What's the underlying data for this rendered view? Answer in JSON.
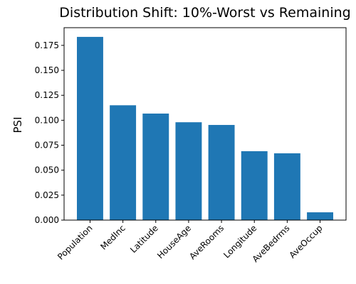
{
  "chart_data": {
    "type": "bar",
    "title": "Distribution Shift: 10%-Worst vs Remaining",
    "y_label": "PSI",
    "categories": [
      "Population",
      "MedInc",
      "Latitude",
      "HouseAge",
      "AveRooms",
      "Longitude",
      "AveBedrms",
      "AveOccup"
    ],
    "values": [
      0.1835,
      0.115,
      0.1067,
      0.098,
      0.0953,
      0.069,
      0.0669,
      0.0078
    ],
    "color": "#1f77b4",
    "ylim": [
      0,
      0.1927
    ],
    "yticks": [
      {
        "value": 0,
        "label": "0.000"
      },
      {
        "value": 0.025,
        "label": "0.025"
      },
      {
        "value": 0.05,
        "label": "0.050"
      },
      {
        "value": 0.075,
        "label": "0.075"
      },
      {
        "value": 0.1,
        "label": "0.100"
      },
      {
        "value": 0.125,
        "label": "0.125"
      },
      {
        "value": 0.15,
        "label": "0.150"
      },
      {
        "value": 0.175,
        "label": "0.175"
      }
    ],
    "grid": false
  }
}
